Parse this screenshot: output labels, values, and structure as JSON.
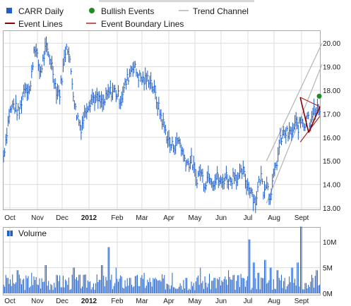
{
  "chart_data": {
    "type": "line",
    "style": "ohlc-bars",
    "legend": {
      "items": [
        {
          "label": "CARR Daily",
          "marker": "square",
          "color": "#1f5fc8"
        },
        {
          "label": "Bullish Events",
          "marker": "circle",
          "color": "#1e8c1e"
        },
        {
          "label": "Trend Channel",
          "marker": "line",
          "color": "#b4b4b4"
        },
        {
          "label": "Event Lines",
          "marker": "line",
          "color": "#8b0000"
        },
        {
          "label": "Event Boundary Lines",
          "marker": "line",
          "color": "#b22222"
        }
      ]
    },
    "price_panel": {
      "y_ticks": [
        "13.00",
        "14.00",
        "15.00",
        "16.00",
        "17.00",
        "18.00",
        "19.00",
        "20.00"
      ],
      "ylim": [
        13.0,
        20.2
      ],
      "grid": true,
      "series": [
        {
          "name": "CARR Daily",
          "color": "#1f5fc8",
          "x": [
            0,
            8,
            14,
            22,
            30,
            38,
            44,
            52,
            60,
            68,
            75,
            80,
            85,
            90,
            96,
            102,
            110,
            118,
            126,
            134,
            142,
            150,
            158,
            166,
            174,
            180,
            184,
            192,
            200,
            208,
            214,
            220,
            226,
            232,
            238,
            244,
            250,
            256,
            262,
            268,
            274,
            280,
            286,
            292,
            298,
            304,
            310,
            316,
            322,
            328,
            334,
            340,
            346,
            352,
            358,
            362,
            366,
            370,
            374,
            378,
            382,
            386,
            390,
            394,
            400,
            406,
            412,
            416,
            420,
            424,
            428,
            432,
            436,
            440,
            444,
            448
          ],
          "y": [
            15.2,
            17.0,
            17.4,
            17.0,
            18.2,
            18.0,
            20.0,
            18.7,
            19.8,
            19.2,
            18.0,
            17.9,
            19.0,
            20.1,
            18.8,
            17.2,
            16.4,
            17.3,
            17.7,
            17.6,
            17.4,
            17.9,
            18.0,
            17.6,
            18.3,
            18.8,
            19.1,
            18.6,
            18.4,
            18.5,
            18.0,
            17.3,
            16.7,
            16.1,
            15.6,
            15.7,
            15.9,
            15.2,
            14.9,
            15.0,
            14.2,
            14.6,
            14.0,
            14.5,
            14.1,
            14.3,
            14.0,
            14.4,
            14.1,
            14.5,
            14.2,
            14.6,
            14.0,
            13.8,
            13.2,
            13.9,
            14.4,
            13.7,
            14.3,
            13.4,
            14.0,
            14.5,
            15.2,
            15.9,
            16.2,
            16.1,
            16.3,
            16.6,
            16.4,
            16.8,
            16.5,
            17.0,
            16.6,
            17.2,
            17.0,
            17.3
          ]
        }
      ],
      "trend_channel": {
        "color": "#b4b4b4",
        "upper": [
          [
            374,
            15.0
          ],
          [
            453,
            20.0
          ]
        ],
        "lower": [
          [
            374,
            13.2
          ],
          [
            453,
            19.1
          ]
        ]
      },
      "event_lines": {
        "color": "#8b0000",
        "segments": [
          [
            [
              422,
              17.7
            ],
            [
              434,
              16.2
            ]
          ],
          [
            [
              434,
              16.2
            ],
            [
              450,
              17.3
            ]
          ]
        ]
      },
      "event_boundary_lines": {
        "color": "#b22222",
        "segments": [
          [
            [
              422,
              17.7
            ],
            [
              450,
              17.3
            ]
          ],
          [
            [
              422,
              15.8
            ],
            [
              450,
              16.9
            ]
          ]
        ]
      },
      "bullish_events": {
        "color": "#1e8c1e",
        "points": [
          [
            449,
            17.75
          ]
        ]
      }
    },
    "volume_panel": {
      "title": "Volume",
      "y_ticks": [
        "0M",
        "5M",
        "10M"
      ],
      "ylim": [
        0,
        12.5
      ],
      "grid": true,
      "series": [
        {
          "name": "Volume",
          "color": "#1f5fc8",
          "x": [
            5,
            20,
            40,
            60,
            80,
            100,
            120,
            140,
            150,
            160,
            180,
            200,
            220,
            240,
            260,
            280,
            300,
            320,
            340,
            350,
            356,
            362,
            372,
            380,
            390,
            400,
            410,
            418,
            423,
            430,
            440,
            445
          ],
          "values": [
            3,
            4.5,
            4,
            5.5,
            3.5,
            5,
            2.5,
            5.5,
            9,
            5,
            3,
            4,
            2.5,
            4,
            3,
            5,
            3,
            4.5,
            3,
            10.5,
            6,
            4,
            6.5,
            5,
            4.5,
            3,
            5,
            6,
            13,
            2,
            3,
            4.5
          ]
        }
      ]
    },
    "x_axis": {
      "tick_labels": [
        "Oct",
        "Nov",
        "Dec",
        "2012",
        "Feb",
        "Mar",
        "Apr",
        "May",
        "Jun",
        "Jul",
        "Aug",
        "Sept"
      ],
      "bold_labels": [
        "2012"
      ]
    }
  }
}
